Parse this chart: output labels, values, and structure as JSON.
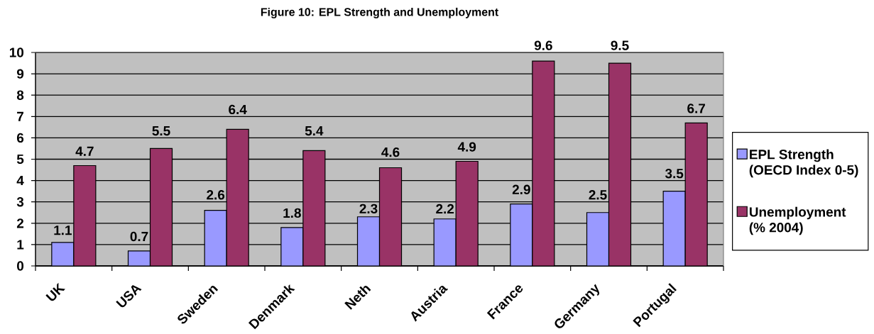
{
  "chart_data": {
    "type": "bar",
    "title": "Figure 10: EPL Strength and Unemployment",
    "categories": [
      "UK",
      "USA",
      "Sweden",
      "Denmark",
      "Neth",
      "Austria",
      "France",
      "Germany",
      "Portugal"
    ],
    "series": [
      {
        "name": "EPL Strength (OECD Index 0-5)",
        "color": "#9999ff",
        "values": [
          1.1,
          0.7,
          2.6,
          1.8,
          2.3,
          2.2,
          2.9,
          2.5,
          3.5
        ]
      },
      {
        "name": "Unemployment (% 2004)",
        "color": "#993366",
        "values": [
          4.7,
          5.5,
          6.4,
          5.4,
          4.6,
          4.9,
          9.6,
          9.5,
          6.7
        ]
      }
    ],
    "ylim": [
      0,
      10
    ],
    "yticks": [
      0,
      1,
      2,
      3,
      4,
      5,
      6,
      7,
      8,
      9,
      10
    ],
    "grid": "y",
    "legend": "right",
    "data_labels": true
  }
}
